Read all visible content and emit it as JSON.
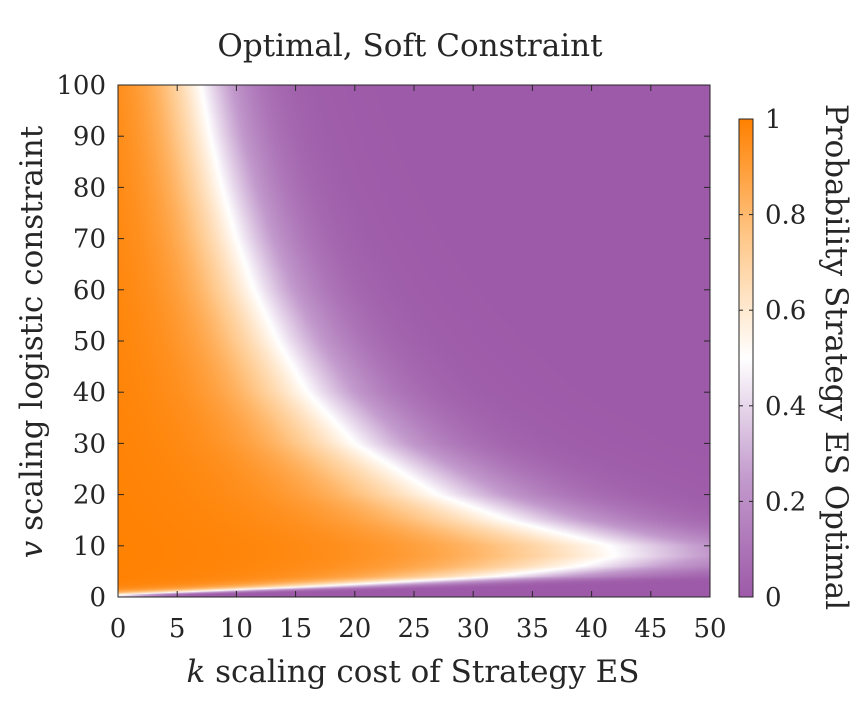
{
  "chart_data": {
    "type": "heatmap",
    "title": "Optimal, Soft Constraint",
    "xlabel_var": "k",
    "xlabel": "scaling cost of Strategy ES",
    "ylabel_var": "v",
    "ylabel": "scaling logistic constraint",
    "colorbar_label": "Probability Strategy ES Optimal",
    "xlim": [
      0,
      50
    ],
    "ylim": [
      0,
      100
    ],
    "xticks": [
      "0",
      "5",
      "10",
      "15",
      "20",
      "25",
      "30",
      "35",
      "40",
      "45",
      "50"
    ],
    "yticks": [
      "0",
      "10",
      "20",
      "30",
      "40",
      "50",
      "60",
      "70",
      "80",
      "90",
      "100"
    ],
    "colorbar_range": [
      0,
      1
    ],
    "colorbar_ticks": [
      "0",
      "0.2",
      "0.4",
      "0.6",
      "0.8",
      "1"
    ],
    "colormap": [
      {
        "value": 0.0,
        "color": "#9d5aa8"
      },
      {
        "value": 0.25,
        "color": "#c39bcd"
      },
      {
        "value": 0.5,
        "color": "#ffffff"
      },
      {
        "value": 0.75,
        "color": "#ffc88a"
      },
      {
        "value": 1.0,
        "color": "#ff8000"
      }
    ],
    "boundary_p05": [
      {
        "v": 0.5,
        "k": 2
      },
      {
        "v": 2,
        "k": 17
      },
      {
        "v": 4,
        "k": 32
      },
      {
        "v": 6,
        "k": 39
      },
      {
        "v": 8,
        "k": 42
      },
      {
        "v": 10,
        "k": 41.5
      },
      {
        "v": 15,
        "k": 33
      },
      {
        "v": 20,
        "k": 27
      },
      {
        "v": 30,
        "k": 20
      },
      {
        "v": 40,
        "k": 16
      },
      {
        "v": 50,
        "k": 13.5
      },
      {
        "v": 60,
        "k": 11.5
      },
      {
        "v": 70,
        "k": 10
      },
      {
        "v": 80,
        "k": 8.8
      },
      {
        "v": 90,
        "k": 7.8
      },
      {
        "v": 100,
        "k": 7
      }
    ],
    "grid": false
  }
}
